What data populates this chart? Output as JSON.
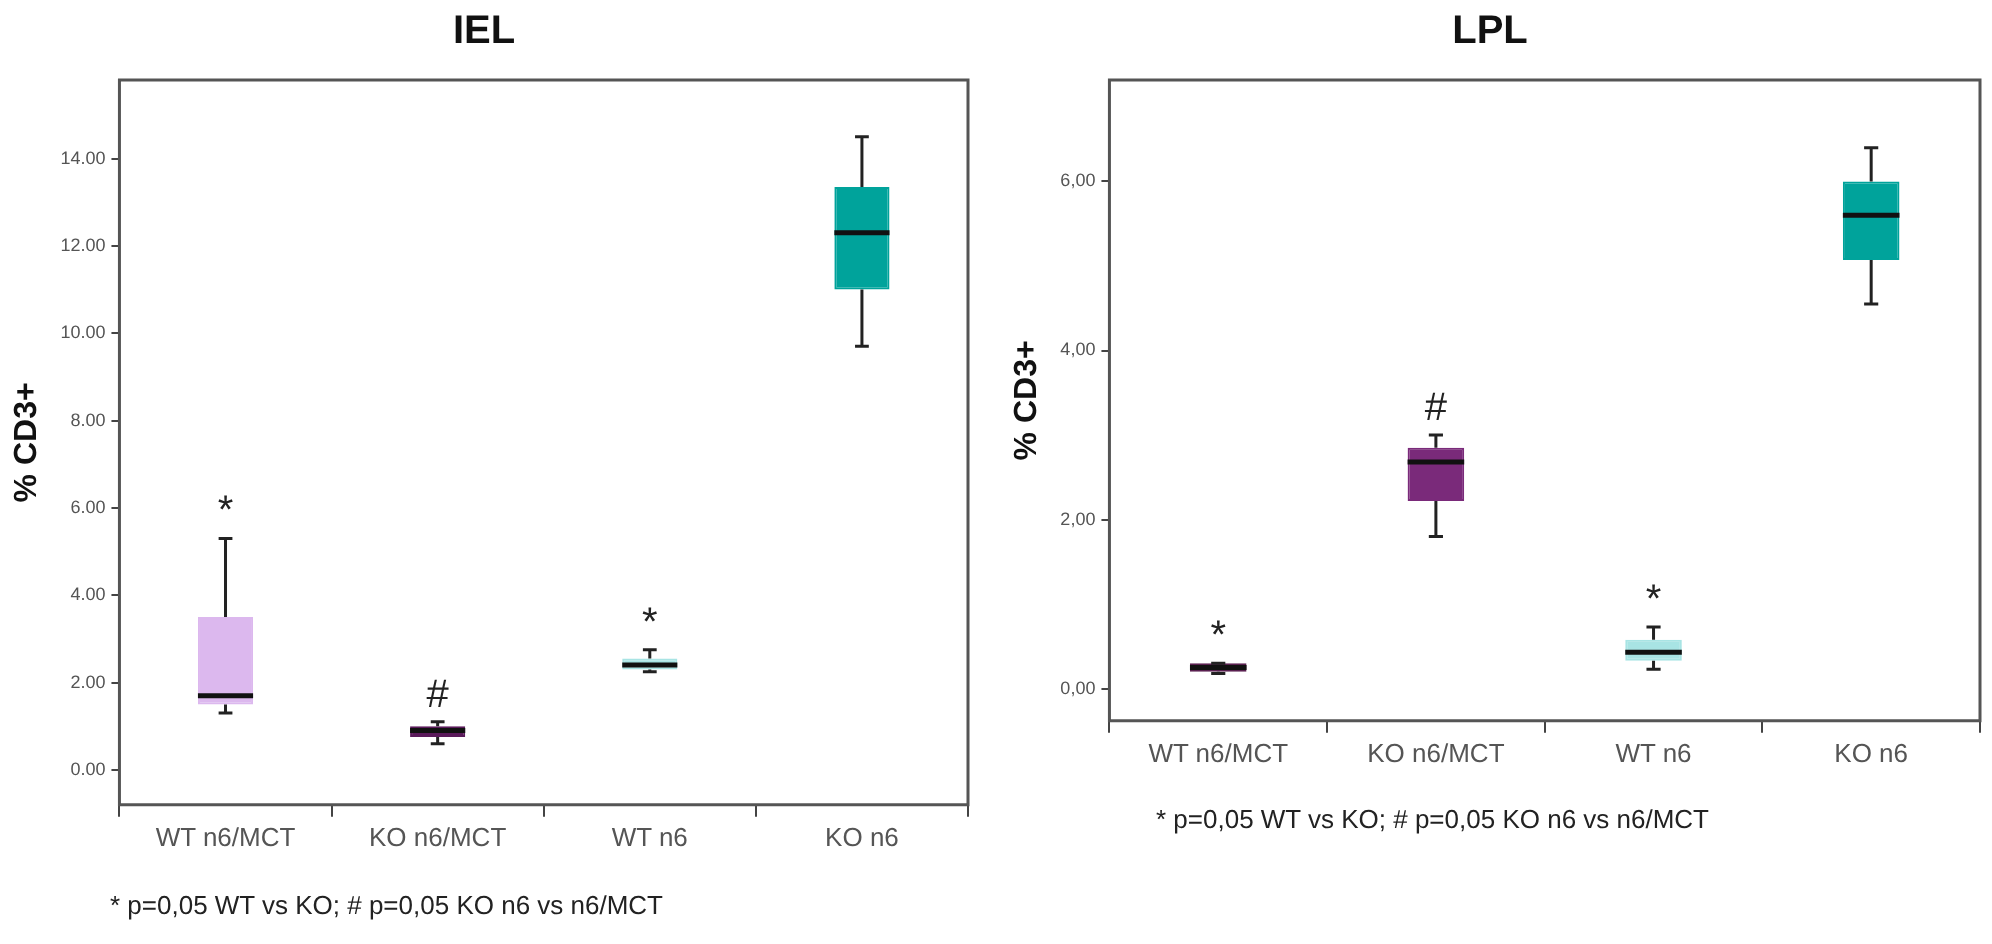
{
  "chart_data": [
    {
      "type": "box",
      "title": "IEL",
      "ylabel": "% CD3+",
      "categories": [
        "WT n6/MCT",
        "KO n6/MCT",
        "WT n6",
        "KO n6"
      ],
      "colors": [
        "#dcb8ee",
        "#5a1a5a",
        "#a8e4e4",
        "#00a39b"
      ],
      "boxes": [
        {
          "low": 1.3,
          "q1": 1.5,
          "median": 1.7,
          "q3": 3.5,
          "high": 5.3
        },
        {
          "low": 0.6,
          "q1": 0.75,
          "median": 0.9,
          "q3": 1.0,
          "high": 1.1
        },
        {
          "low": 2.25,
          "q1": 2.3,
          "median": 2.4,
          "q3": 2.55,
          "high": 2.75
        },
        {
          "low": 9.7,
          "q1": 11.0,
          "median": 12.3,
          "q3": 13.35,
          "high": 14.5
        }
      ],
      "ylim": [
        -0.8,
        15.8
      ],
      "yticks": [
        {
          "value": 0,
          "label": "0.00"
        },
        {
          "value": 2,
          "label": "2.00"
        },
        {
          "value": 4,
          "label": "4.00"
        },
        {
          "value": 6,
          "label": "6.00"
        },
        {
          "value": 8,
          "label": "8.00"
        },
        {
          "value": 10,
          "label": "10.00"
        },
        {
          "value": 12,
          "label": "12.00"
        },
        {
          "value": 14,
          "label": "14.00"
        }
      ],
      "annotations": [
        {
          "text": "*",
          "x": "WT n6/MCT",
          "y": 5.3
        },
        {
          "text": "#",
          "x": "KO n6/MCT",
          "y": 1.1
        },
        {
          "text": "*",
          "x": "WT n6",
          "y": 2.75
        },
        "* p=0,05 WT vs KO; # p=0,05 KO n6 vs n6/MCT"
      ]
    },
    {
      "type": "box",
      "title": "LPL",
      "ylabel": "% CD3+",
      "categories": [
        "WT n6/MCT",
        "KO n6/MCT",
        "WT n6",
        "KO n6"
      ],
      "colors": [
        "#5a2050",
        "#7a2a7a",
        "#a8e4e4",
        "#00a39b"
      ],
      "boxes": [
        {
          "low": 0.18,
          "q1": 0.2,
          "median": 0.25,
          "q3": 0.3,
          "high": 0.3
        },
        {
          "low": 1.8,
          "q1": 2.22,
          "median": 2.68,
          "q3": 2.85,
          "high": 3.0
        },
        {
          "low": 0.23,
          "q1": 0.33,
          "median": 0.43,
          "q3": 0.58,
          "high": 0.73
        },
        {
          "low": 4.55,
          "q1": 5.07,
          "median": 5.6,
          "q3": 6.0,
          "high": 6.4
        }
      ],
      "ylim": [
        -0.38,
        7.2
      ],
      "yticks": [
        {
          "value": 0,
          "label": "0,00"
        },
        {
          "value": 2,
          "label": "2,00"
        },
        {
          "value": 4,
          "label": "4,00"
        },
        {
          "value": 6,
          "label": "6,00"
        }
      ],
      "annotations": [
        {
          "text": "*",
          "x": "WT n6/MCT",
          "y": 0.3
        },
        {
          "text": "#",
          "x": "KO n6/MCT",
          "y": 3.0
        },
        {
          "text": "*",
          "x": "WT n6",
          "y": 0.73
        },
        "* p=0,05 WT vs KO; # p=0,05 KO n6 vs n6/MCT"
      ]
    }
  ]
}
